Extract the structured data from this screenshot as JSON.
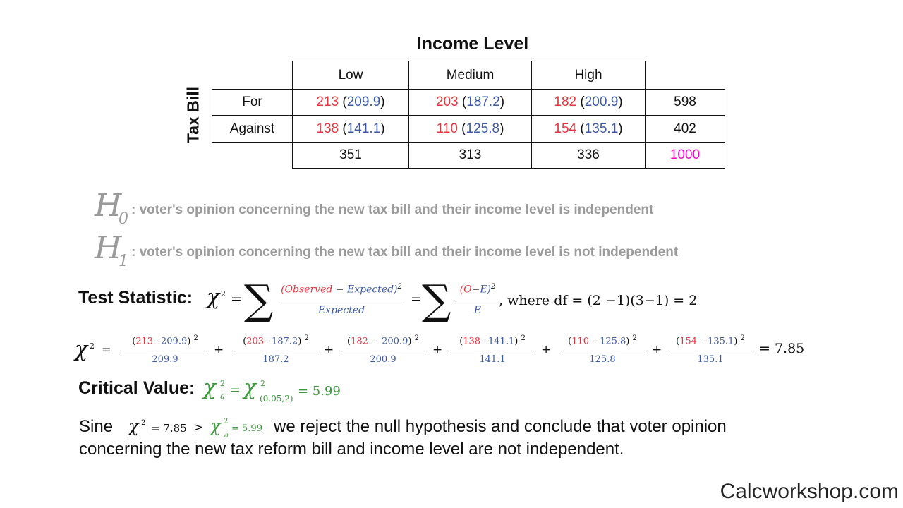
{
  "table": {
    "column_axis_title": "Income Level",
    "row_axis_title": "Tax Bill",
    "col_headers": [
      "Low",
      "Medium",
      "High"
    ],
    "rows": [
      {
        "label": "For",
        "cells": [
          {
            "obs": "213",
            "exp": "209.9"
          },
          {
            "obs": "203",
            "exp": "187.2"
          },
          {
            "obs": "182",
            "exp": "200.9"
          }
        ],
        "total": "598"
      },
      {
        "label": "Against",
        "cells": [
          {
            "obs": "138",
            "exp": "141.1"
          },
          {
            "obs": "110",
            "exp": "125.8"
          },
          {
            "obs": "154",
            "exp": "135.1"
          }
        ],
        "total": "402"
      }
    ],
    "col_totals": [
      "351",
      "313",
      "336"
    ],
    "grand_total": "1000"
  },
  "hypotheses": {
    "h0_symbol": "H",
    "h0_sub": "0",
    "h0_text": ": voter's opinion concerning the new tax bill and their income level is independent",
    "h1_symbol": "H",
    "h1_sub": "1",
    "h1_text": ": voter's opinion concerning the new tax bill and their income level is not independent"
  },
  "test_statistic": {
    "label": "Test Statistic:",
    "lhs": "χ",
    "lhs_sup": "2",
    "num_observed": "(Observed",
    "num_minus": " − ",
    "num_expected": "Expected)",
    "num_sup": "2",
    "den": "Expected",
    "short_num_o": "(O",
    "short_num_minus": "−",
    "short_num_e": "E)",
    "short_num_sup": "2",
    "short_den": "E",
    "df_text": ", where df = (2 −1)(3−1) = 2"
  },
  "calculation": {
    "lhs": "χ",
    "lhs_sup": "2",
    "terms": [
      {
        "obs": "213",
        "exp": "209.9",
        "den": "209.9"
      },
      {
        "obs": "203",
        "exp": "187.2",
        "den": "187.2"
      },
      {
        "obs": "182",
        "exp": "200.9",
        "den": "200.9"
      },
      {
        "obs": "138",
        "exp": "141.1",
        "den": "141.1"
      },
      {
        "obs": "110",
        "exp": "125.8",
        "den": "125.8"
      },
      {
        "obs": "154",
        "exp": "135.1",
        "den": "135.1"
      }
    ],
    "result": "= 7.85"
  },
  "critical_value": {
    "label": "Critical Value:",
    "expr_chi_a": "χ",
    "expr_sub_a": "a",
    "expr_sub_params": "(0.05,2)",
    "result": "= 5.99"
  },
  "conclusion": {
    "lead": "Sine",
    "chi_value": "= 7.85",
    "gt": ">",
    "crit_value": "= 5.99",
    "line1_rest": "we reject the null hypothesis and conclude that voter opinion",
    "line2": "concerning the new tax reform bill and income level are not independent."
  },
  "watermark": "Calcworkshop.com",
  "colors": {
    "observed": "#e8323c",
    "expected": "#3d5aa8",
    "grand_total": "#ff00cc",
    "critical": "#3a9a3a",
    "hypothesis": "#9a9a9a"
  }
}
